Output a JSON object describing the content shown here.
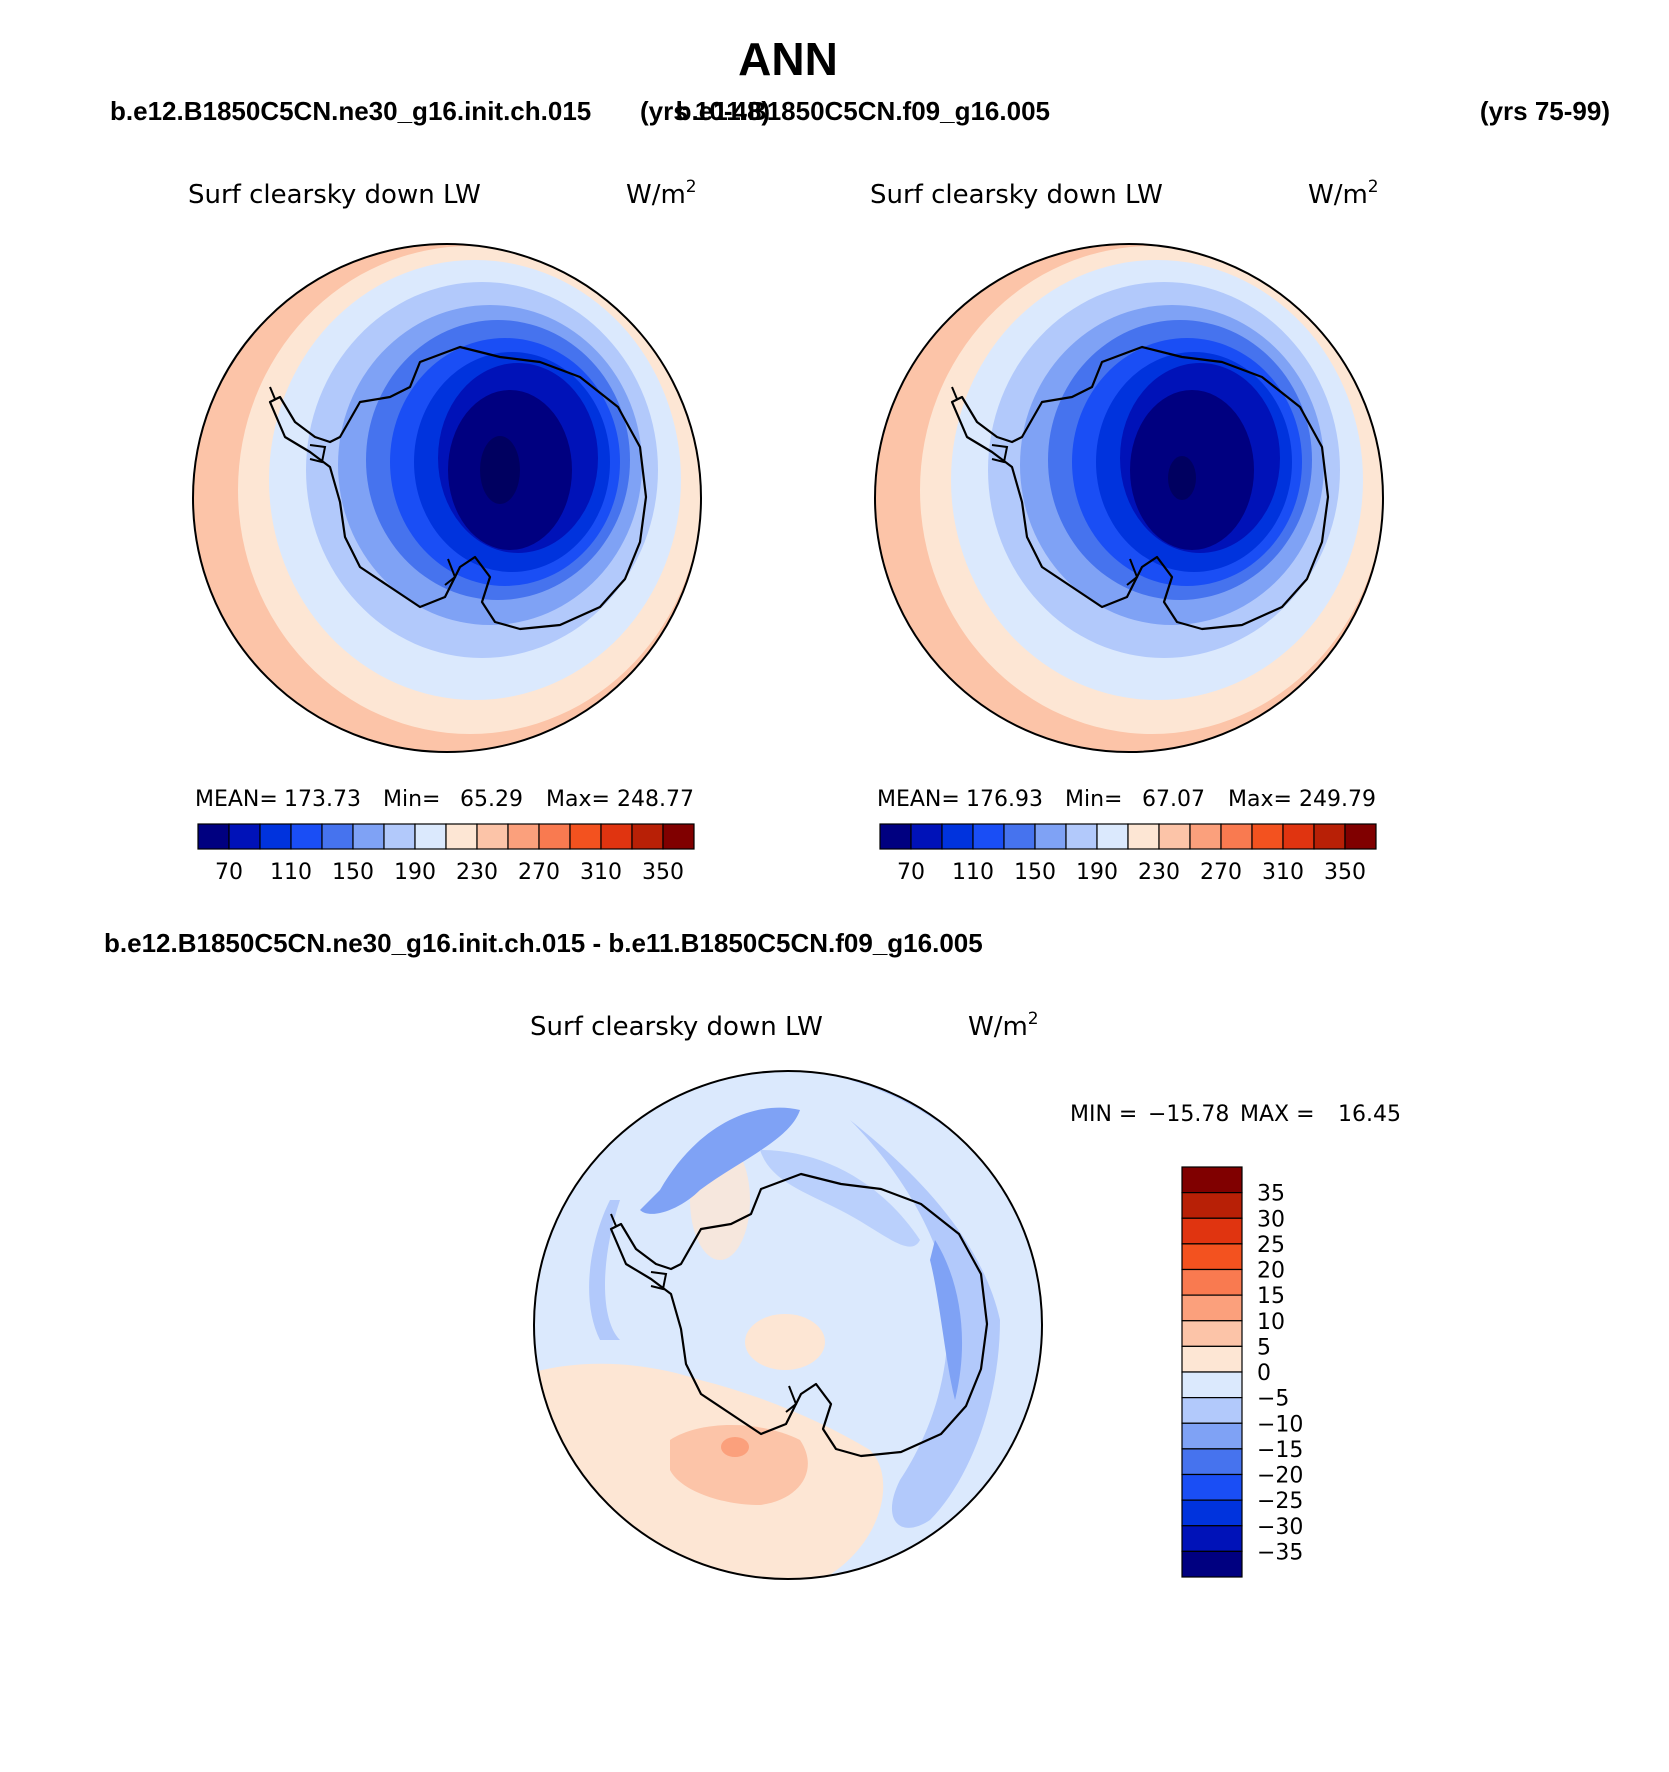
{
  "title": "ANN",
  "case_labels": {
    "case1": "b.e12.B1850C5CN.ne30_g16.init.ch.015",
    "case1_years": "(yrs 10-48)",
    "case2": "b.e11.B1850C5CN.f09_g16.005",
    "case2_years": "(yrs 75-99)",
    "diff": "b.e12.B1850C5CN.ne30_g16.init.ch.015 - b.e11.B1850C5CN.f09_g16.005"
  },
  "chart_data": [
    {
      "type": "heatmap",
      "projection": "south-polar-stereographic",
      "variable": "Surf clearsky down LW",
      "units": "W/m",
      "units_sup": "2",
      "stats": {
        "mean_label": "MEAN=",
        "mean": "173.73",
        "min_label": "Min=",
        "min": "65.29",
        "max_label": "Max=",
        "max": "248.77"
      },
      "levels": [
        70,
        90,
        110,
        130,
        150,
        170,
        190,
        210,
        230,
        250,
        270,
        290,
        310,
        330,
        350
      ],
      "colorbar_labels": [
        "70",
        "110",
        "150",
        "190",
        "230",
        "270",
        "310",
        "350"
      ],
      "colors": [
        "#000080",
        "#0012b8",
        "#0033dd",
        "#1a4ef5",
        "#4673ee",
        "#7fa2f5",
        "#b2c9fb",
        "#dbe9fd",
        "#fde6d4",
        "#fcc4a8",
        "#fba07c",
        "#f97a50",
        "#f3521f",
        "#e03410",
        "#b82006",
        "#800000"
      ]
    },
    {
      "type": "heatmap",
      "projection": "south-polar-stereographic",
      "variable": "Surf clearsky down LW",
      "units": "W/m",
      "units_sup": "2",
      "stats": {
        "mean_label": "MEAN=",
        "mean": "176.93",
        "min_label": "Min=",
        "min": "67.07",
        "max_label": "Max=",
        "max": "249.79"
      },
      "levels": [
        70,
        90,
        110,
        130,
        150,
        170,
        190,
        210,
        230,
        250,
        270,
        290,
        310,
        330,
        350
      ],
      "colorbar_labels": [
        "70",
        "110",
        "150",
        "190",
        "230",
        "270",
        "310",
        "350"
      ],
      "colors": [
        "#000080",
        "#0012b8",
        "#0033dd",
        "#1a4ef5",
        "#4673ee",
        "#7fa2f5",
        "#b2c9fb",
        "#dbe9fd",
        "#fde6d4",
        "#fcc4a8",
        "#fba07c",
        "#f97a50",
        "#f3521f",
        "#e03410",
        "#b82006",
        "#800000"
      ]
    },
    {
      "type": "heatmap",
      "projection": "south-polar-stereographic",
      "variable": "Surf clearsky down LW",
      "units": "W/m",
      "units_sup": "2",
      "stats": {
        "min_label": "MIN =",
        "min": "−15.78",
        "max_label": "MAX =",
        "max": "16.45"
      },
      "colorbar_labels": [
        "35",
        "30",
        "25",
        "20",
        "15",
        "10",
        "5",
        "0",
        "−5",
        "−10",
        "−15",
        "−20",
        "−25",
        "−30",
        "−35"
      ],
      "colors": [
        "#800000",
        "#b82006",
        "#e03410",
        "#f3521f",
        "#f97a50",
        "#fba07c",
        "#fcc4a8",
        "#fde6d4",
        "#dbe9fd",
        "#b2c9fb",
        "#7fa2f5",
        "#4673ee",
        "#1a4ef5",
        "#0033dd",
        "#0012b8",
        "#000080"
      ]
    }
  ]
}
